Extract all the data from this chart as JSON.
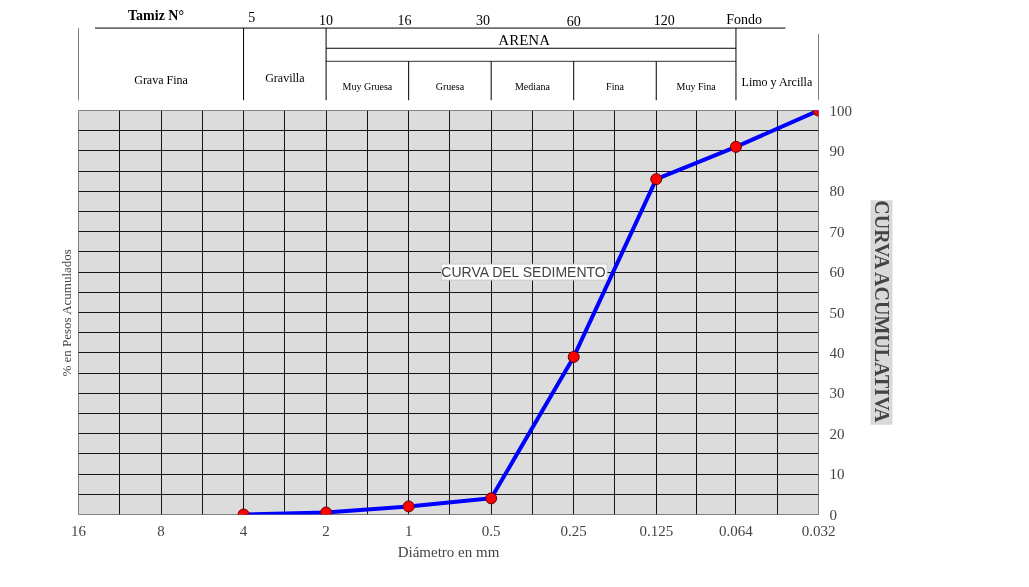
{
  "chart_data": {
    "type": "line",
    "title": "CURVA ACUMULATIVA",
    "xlabel": "Diámetro en mm",
    "ylabel": "% en Pesos Acumulados",
    "x": [
      4,
      2,
      1,
      0.5,
      0.25,
      0.125,
      0.064,
      0.032
    ],
    "series": [
      {
        "color": "#0000ff",
        "values": [
          0,
          0.5,
          2,
          4,
          39,
          83,
          91,
          100
        ]
      },
      {
        "type": "scatter",
        "color": "#ff0000",
        "marker": "circle",
        "values": [
          0,
          0.5,
          2,
          4,
          39,
          83,
          91,
          100
        ]
      }
    ],
    "log": "x",
    "xlim": [
      16,
      0.032
    ],
    "xticks": [
      16,
      8,
      4,
      2,
      1,
      0.5,
      0.25,
      0.125,
      0.064,
      0.032
    ],
    "ylim": [
      0,
      100
    ],
    "yticks": [
      0,
      10,
      20,
      30,
      40,
      50,
      60,
      70,
      80,
      90,
      100
    ],
    "annotations": [
      "Tamiz N°",
      "5",
      "10",
      "16",
      "30",
      "60",
      "120",
      "Fondo",
      "ARENA",
      "Grava Fina",
      "Gravilla",
      "Muy Gruesa",
      "Gruesa",
      "Mediana",
      "Fina",
      "Muy Fina",
      "Limo y Arcilla",
      "CURVA DEL SEDIMENTO"
    ],
    "grid": true
  }
}
